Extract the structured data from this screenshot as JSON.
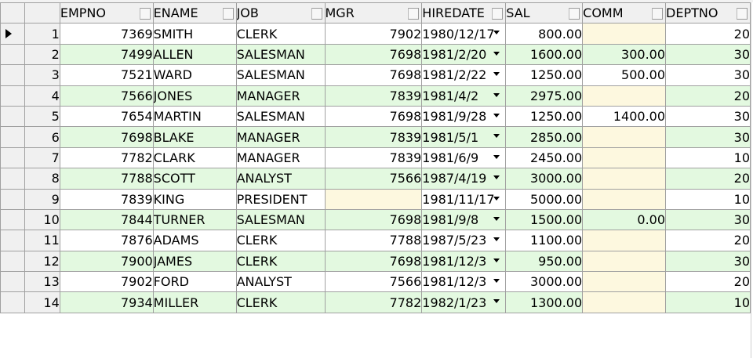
{
  "grid": {
    "columns": [
      "EMPNO",
      "ENAME",
      "JOB",
      "MGR",
      "HIREDATE",
      "SAL",
      "COMM",
      "DEPTNO"
    ],
    "rows": [
      {
        "num": "1",
        "empno": "7369",
        "ename": "SMITH",
        "job": "CLERK",
        "mgr": "7902",
        "hiredate": "1980/12/17",
        "sal": "800.00",
        "comm": "",
        "deptno": "20"
      },
      {
        "num": "2",
        "empno": "7499",
        "ename": "ALLEN",
        "job": "SALESMAN",
        "mgr": "7698",
        "hiredate": "1981/2/20",
        "sal": "1600.00",
        "comm": "300.00",
        "deptno": "30"
      },
      {
        "num": "3",
        "empno": "7521",
        "ename": "WARD",
        "job": "SALESMAN",
        "mgr": "7698",
        "hiredate": "1981/2/22",
        "sal": "1250.00",
        "comm": "500.00",
        "deptno": "30"
      },
      {
        "num": "4",
        "empno": "7566",
        "ename": "JONES",
        "job": "MANAGER",
        "mgr": "7839",
        "hiredate": "1981/4/2",
        "sal": "2975.00",
        "comm": "",
        "deptno": "20"
      },
      {
        "num": "5",
        "empno": "7654",
        "ename": "MARTIN",
        "job": "SALESMAN",
        "mgr": "7698",
        "hiredate": "1981/9/28",
        "sal": "1250.00",
        "comm": "1400.00",
        "deptno": "30"
      },
      {
        "num": "6",
        "empno": "7698",
        "ename": "BLAKE",
        "job": "MANAGER",
        "mgr": "7839",
        "hiredate": "1981/5/1",
        "sal": "2850.00",
        "comm": "",
        "deptno": "30"
      },
      {
        "num": "7",
        "empno": "7782",
        "ename": "CLARK",
        "job": "MANAGER",
        "mgr": "7839",
        "hiredate": "1981/6/9",
        "sal": "2450.00",
        "comm": "",
        "deptno": "10"
      },
      {
        "num": "8",
        "empno": "7788",
        "ename": "SCOTT",
        "job": "ANALYST",
        "mgr": "7566",
        "hiredate": "1987/4/19",
        "sal": "3000.00",
        "comm": "",
        "deptno": "20"
      },
      {
        "num": "9",
        "empno": "7839",
        "ename": "KING",
        "job": "PRESIDENT",
        "mgr": "",
        "hiredate": "1981/11/17",
        "sal": "5000.00",
        "comm": "",
        "deptno": "10"
      },
      {
        "num": "10",
        "empno": "7844",
        "ename": "TURNER",
        "job": "SALESMAN",
        "mgr": "7698",
        "hiredate": "1981/9/8",
        "sal": "1500.00",
        "comm": "0.00",
        "deptno": "30"
      },
      {
        "num": "11",
        "empno": "7876",
        "ename": "ADAMS",
        "job": "CLERK",
        "mgr": "7788",
        "hiredate": "1987/5/23",
        "sal": "1100.00",
        "comm": "",
        "deptno": "20"
      },
      {
        "num": "12",
        "empno": "7900",
        "ename": "JAMES",
        "job": "CLERK",
        "mgr": "7698",
        "hiredate": "1981/12/3",
        "sal": "950.00",
        "comm": "",
        "deptno": "30"
      },
      {
        "num": "13",
        "empno": "7902",
        "ename": "FORD",
        "job": "ANALYST",
        "mgr": "7566",
        "hiredate": "1981/12/3",
        "sal": "3000.00",
        "comm": "",
        "deptno": "20"
      },
      {
        "num": "14",
        "empno": "7934",
        "ename": "MILLER",
        "job": "CLERK",
        "mgr": "7782",
        "hiredate": "1982/1/23",
        "sal": "1300.00",
        "comm": "",
        "deptno": "10"
      }
    ],
    "current_row": 1,
    "colors": {
      "header_bg": "#f0f0f0",
      "row_alt_bg": "#e3f9e0",
      "null_cell_bg": "#fdf8df",
      "grid_line": "#a0a0a0"
    },
    "icons": {
      "current_row": "current-row-arrow-icon",
      "date_picker": "dropdown-arrow-icon"
    }
  }
}
